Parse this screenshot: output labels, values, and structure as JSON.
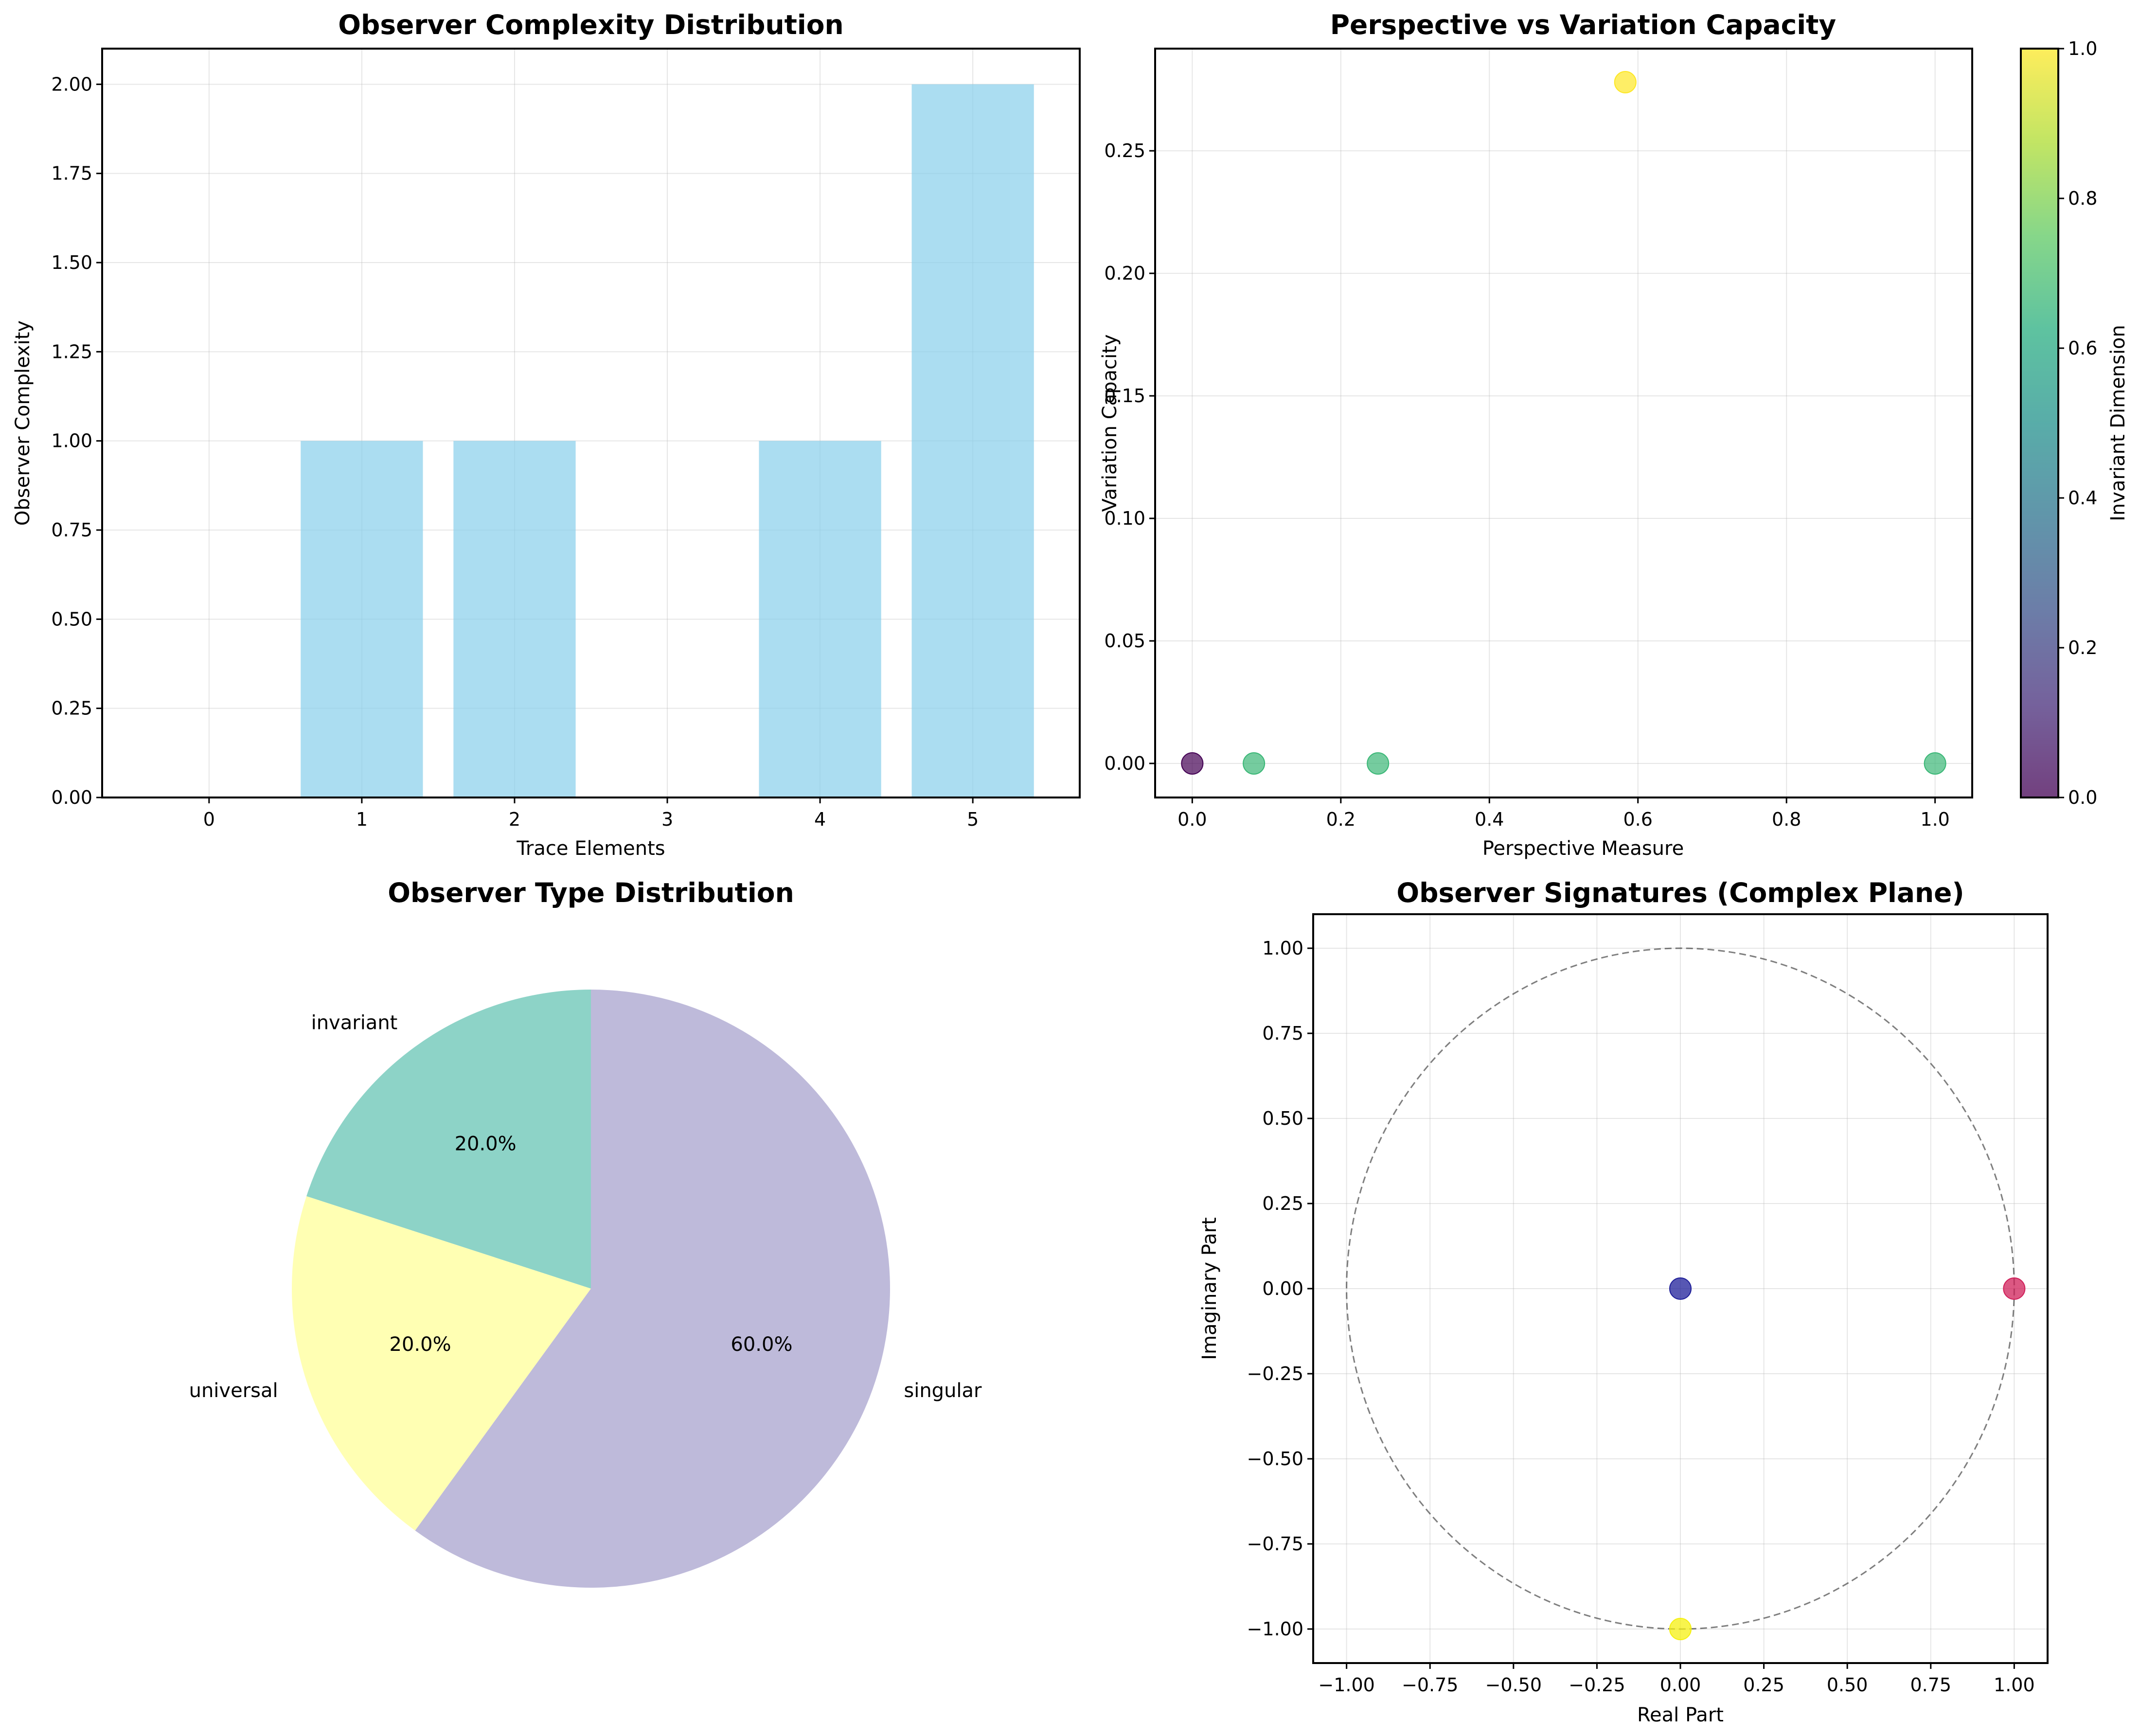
{
  "chart_data": [
    {
      "type": "bar",
      "title": "Observer Complexity Distribution",
      "xlabel": "Trace Elements",
      "ylabel": "Observer Complexity",
      "categories": [
        0,
        1,
        2,
        3,
        4,
        5
      ],
      "values": [
        0,
        1,
        1,
        0,
        1,
        2
      ],
      "xlim": [
        -0.7,
        5.7
      ],
      "ylim": [
        0,
        2.1
      ],
      "xticks": [
        "0",
        "1",
        "2",
        "3",
        "4",
        "5"
      ],
      "yticks": [
        "0.00",
        "0.25",
        "0.50",
        "0.75",
        "1.00",
        "1.25",
        "1.50",
        "1.75",
        "2.00"
      ],
      "bar_color": "#87ceeb",
      "grid": true
    },
    {
      "type": "scatter",
      "title": "Perspective vs Variation Capacity",
      "xlabel": "Perspective Measure",
      "ylabel": "Variation Capacity",
      "points": [
        {
          "x": 0.0,
          "y": 0.0,
          "c": 0.0
        },
        {
          "x": 0.083,
          "y": 0.0,
          "c": 0.667
        },
        {
          "x": 0.25,
          "y": 0.0,
          "c": 0.667
        },
        {
          "x": 0.583,
          "y": 0.278,
          "c": 1.0
        },
        {
          "x": 1.0,
          "y": 0.0,
          "c": 0.667
        }
      ],
      "xlim": [
        -0.05,
        1.05
      ],
      "ylim": [
        -0.0139,
        0.2917
      ],
      "xticks": [
        "0.0",
        "0.2",
        "0.4",
        "0.6",
        "0.8",
        "1.0"
      ],
      "yticks": [
        "0.00",
        "0.05",
        "0.10",
        "0.15",
        "0.20",
        "0.25"
      ],
      "colorbar": {
        "label": "Invariant Dimension",
        "ticks": [
          "0.0",
          "0.2",
          "0.4",
          "0.6",
          "0.8",
          "1.0"
        ],
        "colormap": "viridis"
      },
      "grid": true
    },
    {
      "type": "pie",
      "title": "Observer Type Distribution",
      "slices": [
        {
          "label": "invariant",
          "value": 20.0,
          "pct": "20.0%",
          "color": "#8dd3c7"
        },
        {
          "label": "universal",
          "value": 20.0,
          "pct": "20.0%",
          "color": "#ffffb3"
        },
        {
          "label": "singular",
          "value": 60.0,
          "pct": "60.0%",
          "color": "#bebada"
        }
      ]
    },
    {
      "type": "scatter",
      "title": "Observer Signatures (Complex Plane)",
      "xlabel": "Real Part",
      "ylabel": "Imaginary Part",
      "points": [
        {
          "x": 0.0,
          "y": 0.0,
          "color": "#1f1f99"
        },
        {
          "x": 1.0,
          "y": 0.0,
          "color": "#d0205a"
        },
        {
          "x": 0.0,
          "y": -1.0,
          "color": "#f5f011"
        }
      ],
      "unit_circle": true,
      "xlim": [
        -1.1,
        1.1
      ],
      "ylim": [
        -1.1,
        1.1
      ],
      "xticks": [
        "−1.00",
        "−0.75",
        "−0.50",
        "−0.25",
        "0.00",
        "0.25",
        "0.50",
        "0.75",
        "1.00"
      ],
      "yticks": [
        "−1.00",
        "−0.75",
        "−0.50",
        "−0.25",
        "0.00",
        "0.25",
        "0.50",
        "0.75",
        "1.00"
      ],
      "grid": true
    }
  ]
}
